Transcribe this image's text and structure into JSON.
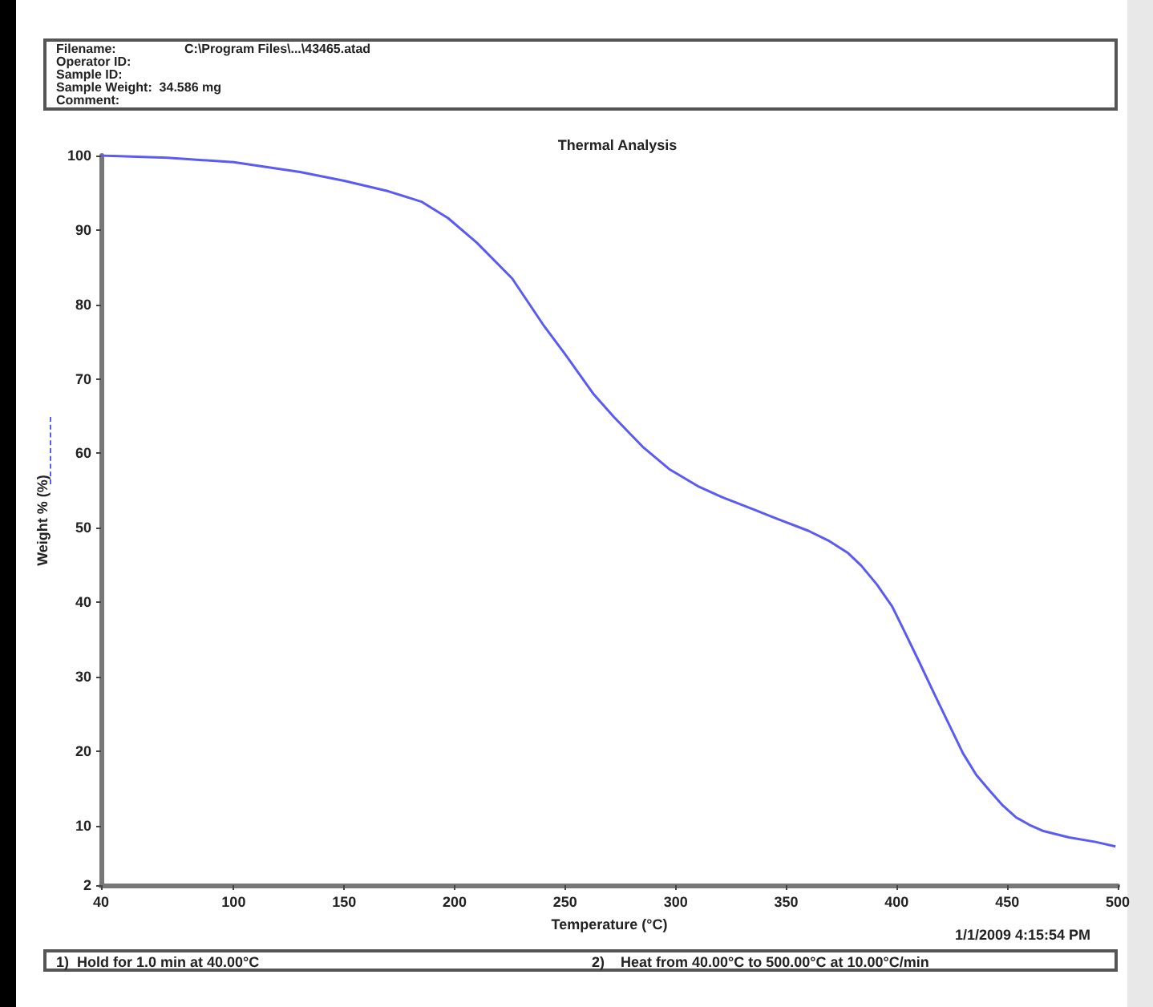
{
  "chart_data": {
    "type": "line",
    "title": "Thermal Analysis",
    "xlabel": "Temperature (°C)",
    "ylabel": "Weight % (%)",
    "annotations": [
      "Filename:",
      "C:\\Program Files\\...\\43465.atad",
      "Operator ID:",
      "Sample ID:",
      "Sample Weight:  34.586 mg",
      "Comment:",
      "1/1/2009 4:15:54 PM",
      "1)  Hold for 1.0 min at 40.00°C",
      "2)    Heat from 40.00°C to 500.00°C at 10.00°C/min"
    ],
    "x": [
      40,
      70,
      100,
      130,
      150,
      170,
      185,
      197,
      210,
      226,
      240,
      250,
      263,
      272,
      285,
      297,
      310,
      321,
      335,
      345,
      360,
      369,
      378,
      384,
      391,
      398,
      403,
      410,
      417,
      424,
      430,
      436,
      442,
      448,
      454,
      460,
      466,
      478,
      490,
      499
    ],
    "series": [
      {
        "color": "#5a5af5",
        "values": [
          100,
          99.7,
          99.1,
          97.8,
          96.6,
          95.2,
          93.8,
          91.6,
          88.3,
          83.5,
          77.3,
          73.3,
          67.9,
          64.9,
          60.9,
          57.9,
          55.6,
          54.1,
          52.5,
          51.3,
          49.6,
          48.3,
          46.6,
          44.9,
          42.4,
          39.4,
          36.4,
          32.1,
          27.7,
          23.4,
          19.7,
          16.8,
          14.7,
          12.7,
          11.1,
          10.1,
          9.3,
          8.4,
          7.8,
          7.2
        ]
      }
    ],
    "xlim": [
      40,
      500
    ],
    "xticks": [
      40,
      100,
      150,
      200,
      250,
      300,
      350,
      400,
      450,
      500
    ],
    "ylim": [
      2,
      100
    ],
    "yticks": [
      2,
      10,
      20,
      30,
      40,
      50,
      60,
      70,
      80,
      90,
      100
    ],
    "grid": false,
    "marker": "none",
    "line_style": "solid"
  }
}
